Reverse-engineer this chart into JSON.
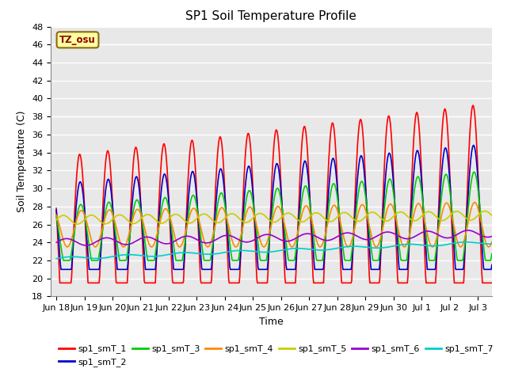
{
  "title": "SP1 Soil Temperature Profile",
  "xlabel": "Time",
  "ylabel": "Soil Temperature (C)",
  "annotation": "TZ_osu",
  "annotation_color": "#8B0000",
  "ylim": [
    18,
    48
  ],
  "yticks": [
    18,
    20,
    22,
    24,
    26,
    28,
    30,
    32,
    34,
    36,
    38,
    40,
    42,
    44,
    46,
    48
  ],
  "background_color": "#E8E8E8",
  "grid_color": "#FFFFFF",
  "series": {
    "sp1_smT_1": {
      "color": "#FF0000",
      "lw": 1.2
    },
    "sp1_smT_2": {
      "color": "#0000CC",
      "lw": 1.2
    },
    "sp1_smT_3": {
      "color": "#00CC00",
      "lw": 1.2
    },
    "sp1_smT_4": {
      "color": "#FF8800",
      "lw": 1.2
    },
    "sp1_smT_5": {
      "color": "#CCCC00",
      "lw": 1.2
    },
    "sp1_smT_6": {
      "color": "#9900CC",
      "lw": 1.2
    },
    "sp1_smT_7": {
      "color": "#00CCCC",
      "lw": 1.2
    }
  },
  "x_tick_labels": [
    "Jun 18",
    "Jun 19",
    "Jun 20",
    "Jun 21",
    "Jun 22",
    "Jun 23",
    "Jun 24",
    "Jun 25",
    "Jun 26",
    "Jun 27",
    "Jun 28",
    "Jun 29",
    "Jun 30",
    "Jul 1",
    "Jul 2",
    "Jul 3"
  ],
  "num_days": 15.5,
  "points_per_day": 48
}
